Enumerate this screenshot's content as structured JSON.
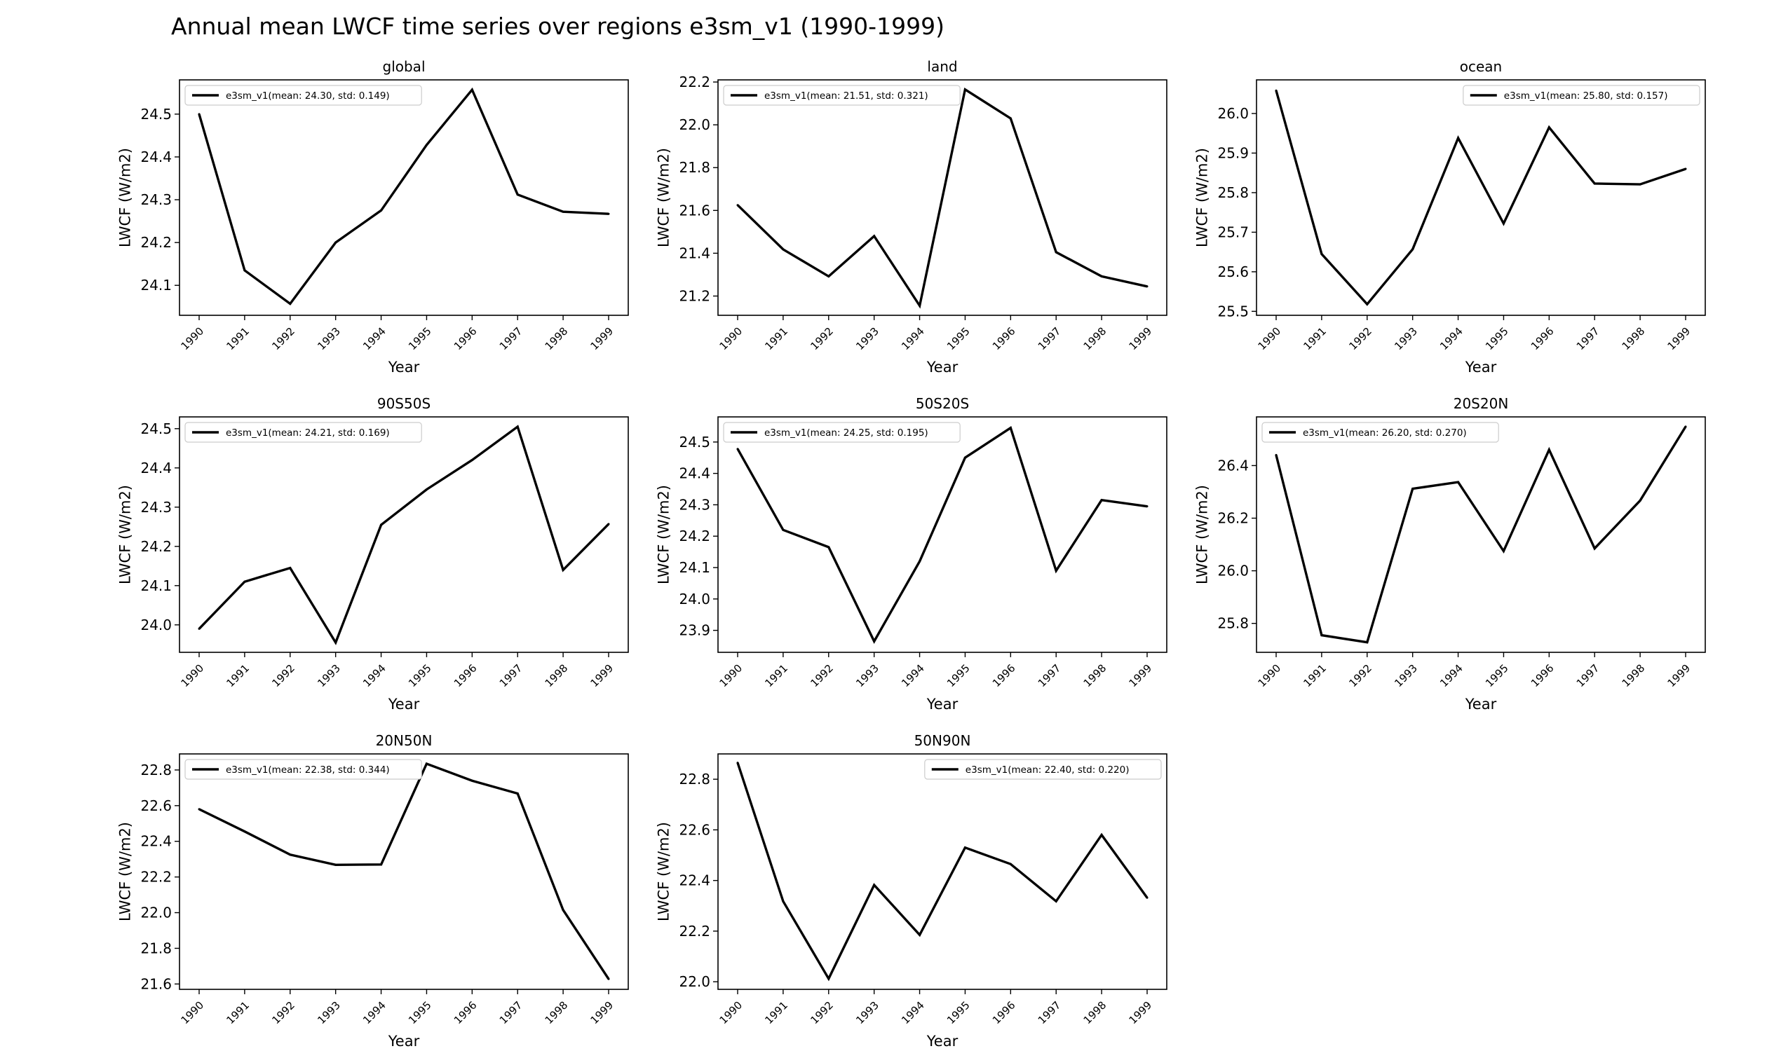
{
  "figure": {
    "title": "Annual mean LWCF time series over regions e3sm_v1 (1990-1999)"
  },
  "colors": {
    "line": "#000000",
    "axes": "#000000",
    "legend_border": "#cccccc",
    "background": "#ffffff"
  },
  "chart_data": [
    {
      "type": "line",
      "title": "global",
      "xlabel": "Year",
      "ylabel": "LWCF (W/m2)",
      "legend_loc": "upper-left",
      "x": [
        "1990",
        "1991",
        "1992",
        "1993",
        "1994",
        "1995",
        "1996",
        "1997",
        "1998",
        "1999"
      ],
      "series": [
        {
          "name": "e3sm_v1(mean: 24.30, std: 0.149)",
          "values": [
            24.5,
            24.135,
            24.057,
            24.2,
            24.275,
            24.428,
            24.557,
            24.312,
            24.272,
            24.267
          ]
        }
      ],
      "ylim": [
        24.03,
        24.58
      ],
      "yticks": [
        24.1,
        24.2,
        24.3,
        24.4,
        24.5
      ],
      "ytick_labels": [
        "24.1",
        "24.2",
        "24.3",
        "24.4",
        "24.5"
      ]
    },
    {
      "type": "line",
      "title": "land",
      "xlabel": "Year",
      "ylabel": "LWCF (W/m2)",
      "legend_loc": "upper-left",
      "x": [
        "1990",
        "1991",
        "1992",
        "1993",
        "1994",
        "1995",
        "1996",
        "1997",
        "1998",
        "1999"
      ],
      "series": [
        {
          "name": "e3sm_v1(mean: 21.51, std: 0.321)",
          "values": [
            21.625,
            21.418,
            21.292,
            21.48,
            21.155,
            22.165,
            22.03,
            21.405,
            21.292,
            21.245
          ]
        }
      ],
      "ylim": [
        21.11,
        22.21
      ],
      "yticks": [
        21.2,
        21.4,
        21.6,
        21.8,
        22.0,
        22.2
      ],
      "ytick_labels": [
        "21.2",
        "21.4",
        "21.6",
        "21.8",
        "22.0",
        "22.2"
      ]
    },
    {
      "type": "line",
      "title": "ocean",
      "xlabel": "Year",
      "ylabel": "LWCF (W/m2)",
      "legend_loc": "upper-right",
      "x": [
        "1990",
        "1991",
        "1992",
        "1993",
        "1994",
        "1995",
        "1996",
        "1997",
        "1998",
        "1999"
      ],
      "series": [
        {
          "name": "e3sm_v1(mean: 25.80, std: 0.157)",
          "values": [
            26.058,
            25.645,
            25.518,
            25.657,
            25.938,
            25.722,
            25.965,
            25.823,
            25.821,
            25.86
          ]
        }
      ],
      "ylim": [
        25.49,
        26.085
      ],
      "yticks": [
        25.5,
        25.6,
        25.7,
        25.8,
        25.9,
        26.0
      ],
      "ytick_labels": [
        "25.5",
        "25.6",
        "25.7",
        "25.8",
        "25.9",
        "26.0"
      ]
    },
    {
      "type": "line",
      "title": "90S50S",
      "xlabel": "Year",
      "ylabel": "LWCF (W/m2)",
      "legend_loc": "upper-left",
      "x": [
        "1990",
        "1991",
        "1992",
        "1993",
        "1994",
        "1995",
        "1996",
        "1997",
        "1998",
        "1999"
      ],
      "series": [
        {
          "name": "e3sm_v1(mean: 24.21, std: 0.169)",
          "values": [
            23.99,
            24.11,
            24.145,
            23.955,
            24.255,
            24.345,
            24.42,
            24.505,
            24.14,
            24.257
          ]
        }
      ],
      "ylim": [
        23.93,
        24.53
      ],
      "yticks": [
        24.0,
        24.1,
        24.2,
        24.3,
        24.4,
        24.5
      ],
      "ytick_labels": [
        "24.0",
        "24.1",
        "24.2",
        "24.3",
        "24.4",
        "24.5"
      ]
    },
    {
      "type": "line",
      "title": "50S20S",
      "xlabel": "Year",
      "ylabel": "LWCF (W/m2)",
      "legend_loc": "upper-left",
      "x": [
        "1990",
        "1991",
        "1992",
        "1993",
        "1994",
        "1995",
        "1996",
        "1997",
        "1998",
        "1999"
      ],
      "series": [
        {
          "name": "e3sm_v1(mean: 24.25, std: 0.195)",
          "values": [
            24.478,
            24.22,
            24.165,
            23.865,
            24.12,
            24.45,
            24.545,
            24.09,
            24.315,
            24.295
          ]
        }
      ],
      "ylim": [
        23.83,
        24.58
      ],
      "yticks": [
        23.9,
        24.0,
        24.1,
        24.2,
        24.3,
        24.4,
        24.5
      ],
      "ytick_labels": [
        "23.9",
        "24.0",
        "24.1",
        "24.2",
        "24.3",
        "24.4",
        "24.5"
      ]
    },
    {
      "type": "line",
      "title": "20S20N",
      "xlabel": "Year",
      "ylabel": "LWCF (W/m2)",
      "legend_loc": "upper-left",
      "x": [
        "1990",
        "1991",
        "1992",
        "1993",
        "1994",
        "1995",
        "1996",
        "1997",
        "1998",
        "1999"
      ],
      "series": [
        {
          "name": "e3sm_v1(mean: 26.20, std: 0.270)",
          "values": [
            26.44,
            25.755,
            25.728,
            26.312,
            26.337,
            26.075,
            26.46,
            26.085,
            26.267,
            26.548
          ]
        }
      ],
      "ylim": [
        25.69,
        26.585
      ],
      "yticks": [
        25.8,
        26.0,
        26.2,
        26.4
      ],
      "ytick_labels": [
        "25.8",
        "26.0",
        "26.2",
        "26.4"
      ]
    },
    {
      "type": "line",
      "title": "20N50N",
      "xlabel": "Year",
      "ylabel": "LWCF (W/m2)",
      "legend_loc": "upper-left",
      "x": [
        "1990",
        "1991",
        "1992",
        "1993",
        "1994",
        "1995",
        "1996",
        "1997",
        "1998",
        "1999"
      ],
      "series": [
        {
          "name": "e3sm_v1(mean: 22.38, std: 0.344)",
          "values": [
            22.58,
            22.455,
            22.325,
            22.268,
            22.27,
            22.835,
            22.74,
            22.668,
            22.015,
            21.628
          ]
        }
      ],
      "ylim": [
        21.57,
        22.89
      ],
      "yticks": [
        21.6,
        21.8,
        22.0,
        22.2,
        22.4,
        22.6,
        22.8
      ],
      "ytick_labels": [
        "21.6",
        "21.8",
        "22.0",
        "22.2",
        "22.4",
        "22.6",
        "22.8"
      ]
    },
    {
      "type": "line",
      "title": "50N90N",
      "xlabel": "Year",
      "ylabel": "LWCF (W/m2)",
      "legend_loc": "upper-right",
      "x": [
        "1990",
        "1991",
        "1992",
        "1993",
        "1994",
        "1995",
        "1996",
        "1997",
        "1998",
        "1999"
      ],
      "series": [
        {
          "name": "e3sm_v1(mean: 22.40, std: 0.220)",
          "values": [
            22.865,
            22.318,
            22.012,
            22.382,
            22.185,
            22.53,
            22.465,
            22.318,
            22.58,
            22.332
          ]
        }
      ],
      "ylim": [
        21.97,
        22.9
      ],
      "yticks": [
        22.0,
        22.2,
        22.4,
        22.6,
        22.8
      ],
      "ytick_labels": [
        "22.0",
        "22.2",
        "22.4",
        "22.6",
        "22.8"
      ]
    }
  ]
}
